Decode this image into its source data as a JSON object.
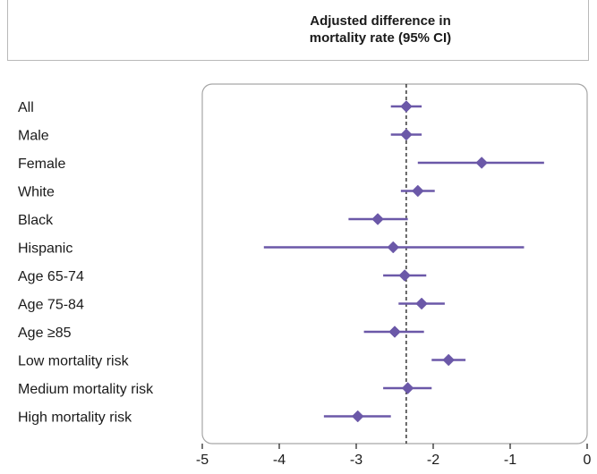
{
  "chart_data": {
    "type": "forest",
    "title": "Adjusted difference in mortality rate (95% CI)",
    "title_lines": [
      "Adjusted difference in",
      "mortality rate (95% CI)"
    ],
    "xlabel": "",
    "ylabel": "",
    "xlim": [
      -5,
      0
    ],
    "x_ticks": [
      -5,
      -4,
      -3,
      -2,
      -1,
      0
    ],
    "x_tick_labels": [
      "-5",
      "-4",
      "-3",
      "-2",
      "-1",
      "0"
    ],
    "reference_line": -2.35,
    "grid": false,
    "marker_color": "#6b58a8",
    "rows": [
      {
        "label": "All",
        "estimate": -2.35,
        "ci_low": -2.55,
        "ci_high": -2.15
      },
      {
        "label": "Male",
        "estimate": -2.35,
        "ci_low": -2.55,
        "ci_high": -2.15
      },
      {
        "label": "Female",
        "estimate": -1.37,
        "ci_low": -2.2,
        "ci_high": -0.56
      },
      {
        "label": "White",
        "estimate": -2.2,
        "ci_low": -2.42,
        "ci_high": -1.98
      },
      {
        "label": "Black",
        "estimate": -2.72,
        "ci_low": -3.1,
        "ci_high": -2.33
      },
      {
        "label": "Hispanic",
        "estimate": -2.52,
        "ci_low": -4.2,
        "ci_high": -0.82
      },
      {
        "label": "Age 65-74",
        "estimate": -2.37,
        "ci_low": -2.65,
        "ci_high": -2.09
      },
      {
        "label": "Age 75-84",
        "estimate": -2.15,
        "ci_low": -2.45,
        "ci_high": -1.85
      },
      {
        "label": "Age ≥85",
        "estimate": -2.5,
        "ci_low": -2.9,
        "ci_high": -2.12
      },
      {
        "label": "Low mortality risk",
        "estimate": -1.8,
        "ci_low": -2.02,
        "ci_high": -1.58
      },
      {
        "label": "Medium mortality risk",
        "estimate": -2.33,
        "ci_low": -2.65,
        "ci_high": -2.02
      },
      {
        "label": "High mortality risk",
        "estimate": -2.98,
        "ci_low": -3.42,
        "ci_high": -2.55
      }
    ]
  }
}
